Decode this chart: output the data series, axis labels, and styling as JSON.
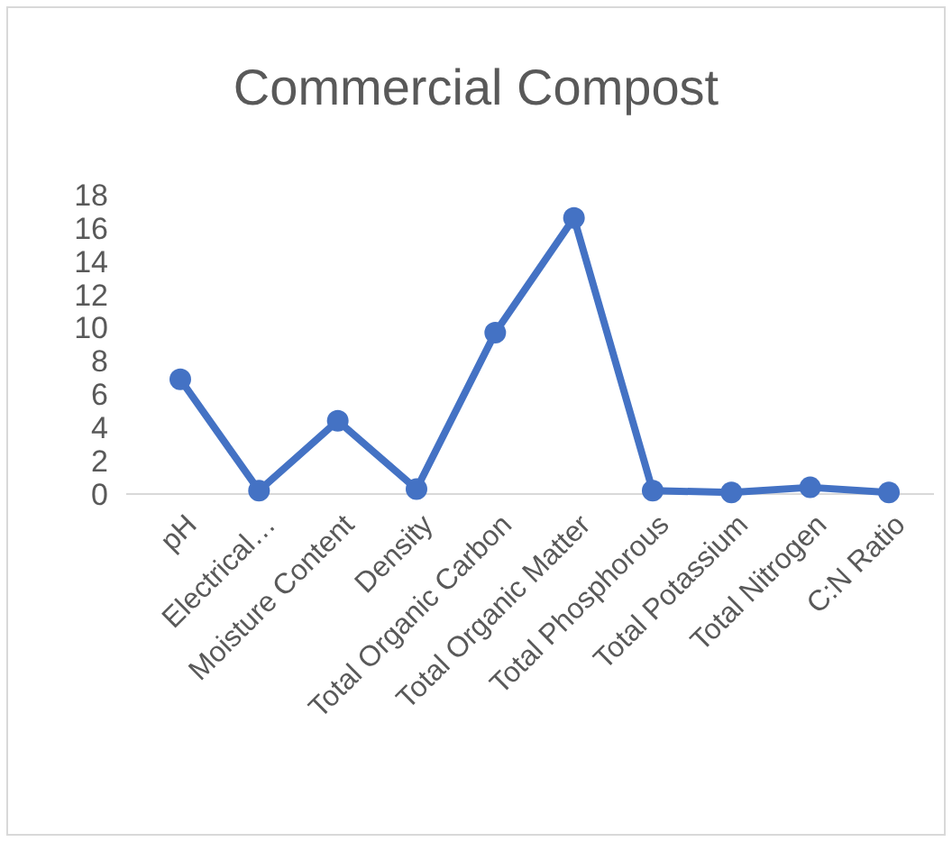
{
  "chart_data": {
    "type": "line",
    "title": "Commercial Compost",
    "categories": [
      "pH",
      "Electrical…",
      "Moisture Content",
      "Density",
      "Total Organic Carbon",
      "Total Organic Matter",
      "Total Phosphorous",
      "Total Potassium",
      "Total Nitrogen",
      "C:N Ratio"
    ],
    "series": [
      {
        "color": "#4472c4",
        "values": [
          6.9,
          0.2,
          4.4,
          0.3,
          9.7,
          16.6,
          0.2,
          0.1,
          0.4,
          0.1
        ]
      }
    ],
    "ylim": [
      0,
      18
    ],
    "yticks": [
      0,
      2,
      4,
      6,
      8,
      10,
      12,
      14,
      16,
      18
    ],
    "grid": false,
    "marker": "circle",
    "line_style": "solid"
  }
}
